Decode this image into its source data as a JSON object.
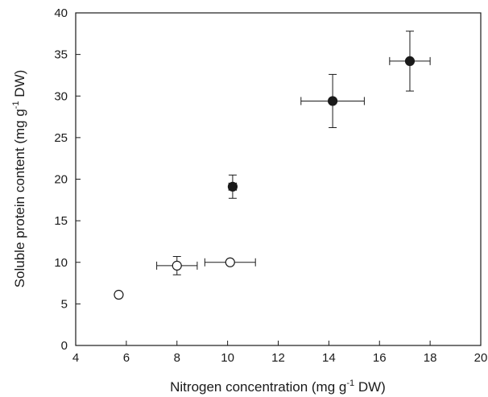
{
  "chart_data": {
    "type": "scatter",
    "xlabel": {
      "before": "Nitrogen concentration (mg g",
      "sup": "-1",
      "after": " DW)"
    },
    "ylabel": {
      "before": "Soluble protein content (mg g",
      "sup": "-1",
      "after": " DW)"
    },
    "xlim": [
      4,
      20
    ],
    "ylim": [
      0,
      40
    ],
    "xticks": [
      4,
      6,
      8,
      10,
      12,
      14,
      16,
      18,
      20
    ],
    "yticks": [
      0,
      5,
      10,
      15,
      20,
      25,
      30,
      35,
      40
    ],
    "grid": false,
    "legend": "none",
    "marker_colors": {
      "filled": "#1a1a1a",
      "open": "#ffffff",
      "stroke": "#1a1a1a"
    },
    "series": [
      {
        "marker": "open-circle",
        "points": [
          {
            "x": 5.7,
            "y": 6.1,
            "xerr": 0.1,
            "yerr": 0.3
          },
          {
            "x": 8.0,
            "y": 9.6,
            "xerr": 0.8,
            "yerr": 1.1
          },
          {
            "x": 10.1,
            "y": 10.0,
            "xerr": 1.0,
            "yerr": 0.2
          }
        ]
      },
      {
        "marker": "filled-circle",
        "points": [
          {
            "x": 10.2,
            "y": 19.1,
            "xerr": 0.15,
            "yerr": 1.4
          },
          {
            "x": 14.15,
            "y": 29.4,
            "xerr": 1.25,
            "yerr": 3.2
          },
          {
            "x": 17.2,
            "y": 34.2,
            "xerr": 0.8,
            "yerr": 3.6
          }
        ]
      }
    ]
  }
}
